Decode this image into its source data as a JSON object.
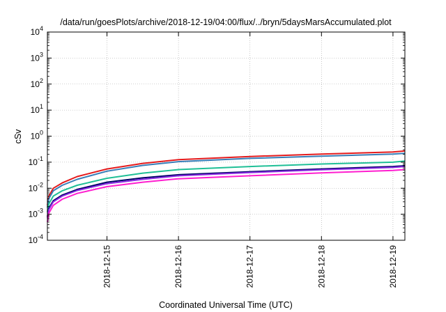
{
  "chart_data": {
    "type": "line",
    "title": "/data/run/goesPlots/archive/2018-12-19/04:00/flux/../bryn/5daysMarsAccumulated.plot",
    "xlabel": "Coordinated Universal Time (UTC)",
    "ylabel": "cSv",
    "y_scale": "log",
    "ylim": [
      0.0001,
      10000
    ],
    "xlim": [
      "2018-12-14 04:00",
      "2018-12-19 04:00"
    ],
    "grid": true,
    "y_ticks": [
      {
        "value": 0.0001,
        "base": "10",
        "exp": "-4"
      },
      {
        "value": 0.001,
        "base": "10",
        "exp": "-3"
      },
      {
        "value": 0.01,
        "base": "10",
        "exp": "-2"
      },
      {
        "value": 0.1,
        "base": "10",
        "exp": "-1"
      },
      {
        "value": 1,
        "base": "10",
        "exp": "0"
      },
      {
        "value": 10,
        "base": "10",
        "exp": "1"
      },
      {
        "value": 100,
        "base": "10",
        "exp": "2"
      },
      {
        "value": 1000,
        "base": "10",
        "exp": "3"
      },
      {
        "value": 10000,
        "base": "10",
        "exp": "4"
      }
    ],
    "x_ticks": [
      "2018-12-15",
      "2018-12-16",
      "2018-12-17",
      "2018-12-18",
      "2018-12-19"
    ],
    "x": [
      "2018-12-14 04:00",
      "2018-12-14 04:30",
      "2018-12-14 06:00",
      "2018-12-14 09:00",
      "2018-12-14 14:00",
      "2018-12-15 00:00",
      "2018-12-15 12:00",
      "2018-12-16 00:00",
      "2018-12-17 00:00",
      "2018-12-18 00:00",
      "2018-12-19 00:00",
      "2018-12-19 04:00"
    ],
    "series": [
      {
        "color": "#e41a1c",
        "values": [
          0.0022,
          0.005,
          0.01,
          0.016,
          0.028,
          0.055,
          0.09,
          0.125,
          0.165,
          0.205,
          0.245,
          0.27
        ]
      },
      {
        "color": "#377eb8",
        "values": [
          0.0018,
          0.004,
          0.008,
          0.013,
          0.022,
          0.045,
          0.075,
          0.105,
          0.14,
          0.17,
          0.205,
          0.22
        ]
      },
      {
        "color": "#1fbf96",
        "values": [
          0.0012,
          0.0025,
          0.005,
          0.008,
          0.013,
          0.024,
          0.038,
          0.052,
          0.068,
          0.085,
          0.1,
          0.11
        ]
      },
      {
        "color": "#000066",
        "values": [
          0.0008,
          0.0017,
          0.0033,
          0.0055,
          0.009,
          0.017,
          0.025,
          0.033,
          0.043,
          0.055,
          0.068,
          0.073
        ]
      },
      {
        "color": "#8a2be2",
        "values": [
          0.0007,
          0.0015,
          0.003,
          0.005,
          0.0082,
          0.015,
          0.022,
          0.03,
          0.04,
          0.051,
          0.063,
          0.068
        ]
      },
      {
        "color": "#ff1ecf",
        "values": [
          0.0005,
          0.0011,
          0.0022,
          0.0038,
          0.0063,
          0.0115,
          0.017,
          0.023,
          0.03,
          0.039,
          0.048,
          0.052
        ]
      }
    ]
  }
}
